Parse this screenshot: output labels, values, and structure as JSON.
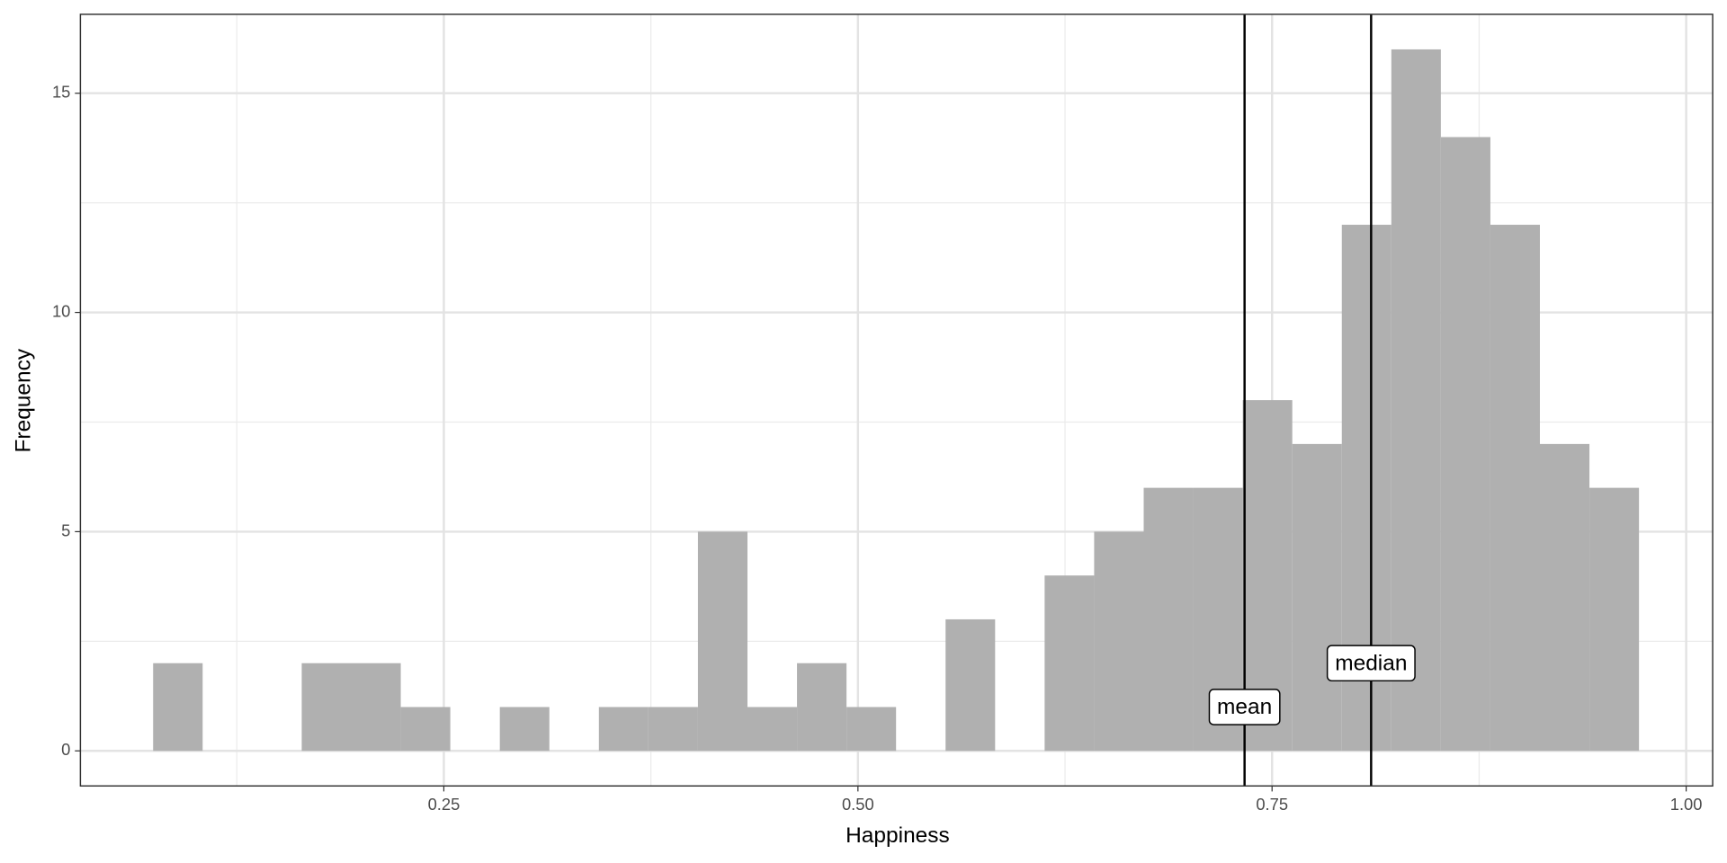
{
  "chart_data": {
    "type": "histogram",
    "x_label": "Happiness",
    "y_label": "Frequency",
    "bins": [
      0.0745,
      0.1044,
      0.1343,
      0.1642,
      0.1941,
      0.224,
      0.2539,
      0.2838,
      0.3137,
      0.3436,
      0.3735,
      0.4034,
      0.4333,
      0.4632,
      0.4931,
      0.523,
      0.5529,
      0.5828,
      0.6127,
      0.6426,
      0.6725,
      0.7024,
      0.7323,
      0.7622,
      0.7921,
      0.822,
      0.8519,
      0.8818,
      0.9117,
      0.9416,
      0.9715
    ],
    "values": [
      2,
      0,
      0,
      2,
      2,
      1,
      0,
      1,
      0,
      1,
      1,
      5,
      1,
      2,
      1,
      0,
      3,
      0,
      4,
      5,
      6,
      6,
      8,
      7,
      12,
      16,
      14,
      12,
      7,
      6
    ],
    "color": "#b0b0b0",
    "xlim": [
      0.0306,
      1.016
    ],
    "ylim": [
      -0.8,
      16.8
    ],
    "xticks": [
      0.25,
      {
        "value": 0.5,
        "label": "0.50"
      },
      0.75,
      {
        "value": 1,
        "label": "1.00"
      }
    ],
    "yticks": [
      0,
      5,
      10,
      15
    ],
    "xminor": [
      0.125,
      0.375,
      0.625,
      0.875
    ],
    "yminor": [
      2.5,
      7.5,
      12.5
    ],
    "grid": true,
    "vlines": [
      {
        "label": "mean",
        "x": 0.7334,
        "label_y": 1
      },
      {
        "label": "median",
        "x": 0.8098,
        "label_y": 2
      }
    ]
  }
}
